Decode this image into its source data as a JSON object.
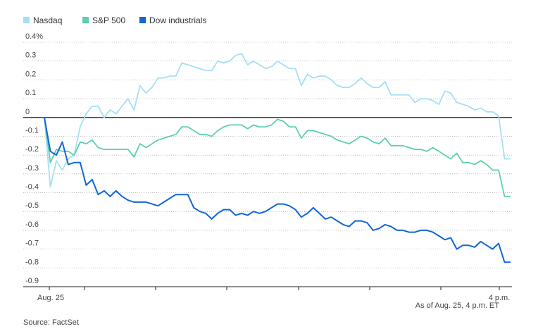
{
  "chart_data": {
    "type": "line",
    "title": "",
    "xlabel": "",
    "ylabel": "",
    "ylim": [
      -0.9,
      0.4
    ],
    "y_tick_values": [
      0.4,
      0.3,
      0.2,
      0.1,
      0,
      -0.1,
      -0.2,
      -0.3,
      -0.4,
      -0.5,
      -0.6,
      -0.7,
      -0.8,
      -0.9
    ],
    "y_tick_labels": [
      "0.4%",
      "0.3",
      "0.2",
      "0.1",
      "0",
      "-0.1",
      "-0.2",
      "-0.3",
      "-0.4",
      "-0.5",
      "-0.6",
      "-0.7",
      "-0.8",
      "-0.9"
    ],
    "x_tick_labels": {
      "start": "Aug. 25",
      "end": "4 p.m."
    },
    "grid": true,
    "legend_position": "top-left",
    "note": "As of Aug. 25, 4 p.m. ET",
    "source": "Source: FactSet",
    "series": [
      {
        "name": "Nasdaq",
        "color": "#a3e0f3",
        "values": [
          0,
          -0.37,
          -0.23,
          -0.28,
          -0.22,
          -0.2,
          -0.05,
          0.02,
          0.06,
          0.06,
          0.0,
          0.04,
          0.02,
          0.06,
          0.1,
          0.04,
          0.17,
          0.13,
          0.16,
          0.21,
          0.21,
          0.22,
          0.22,
          0.29,
          0.28,
          0.27,
          0.26,
          0.25,
          0.25,
          0.3,
          0.29,
          0.3,
          0.33,
          0.34,
          0.28,
          0.3,
          0.28,
          0.26,
          0.27,
          0.3,
          0.28,
          0.26,
          0.26,
          0.17,
          0.23,
          0.21,
          0.22,
          0.22,
          0.2,
          0.17,
          0.16,
          0.16,
          0.18,
          0.21,
          0.18,
          0.16,
          0.16,
          0.19,
          0.12,
          0.12,
          0.12,
          0.12,
          0.08,
          0.1,
          0.1,
          0.09,
          0.07,
          0.14,
          0.13,
          0.08,
          0.07,
          0.06,
          0.04,
          0.05,
          0.03,
          0.03,
          0.01,
          -0.22,
          -0.22
        ]
      },
      {
        "name": "S&P 500",
        "color": "#5ccfb2",
        "values": [
          0,
          -0.24,
          -0.17,
          -0.18,
          -0.18,
          -0.2,
          -0.13,
          -0.14,
          -0.12,
          -0.16,
          -0.17,
          -0.17,
          -0.17,
          -0.17,
          -0.17,
          -0.21,
          -0.14,
          -0.16,
          -0.14,
          -0.12,
          -0.11,
          -0.1,
          -0.09,
          -0.05,
          -0.05,
          -0.07,
          -0.09,
          -0.09,
          -0.1,
          -0.07,
          -0.05,
          -0.04,
          -0.04,
          -0.04,
          -0.06,
          -0.04,
          -0.05,
          -0.05,
          -0.04,
          -0.01,
          -0.02,
          -0.05,
          -0.05,
          -0.11,
          -0.07,
          -0.07,
          -0.08,
          -0.09,
          -0.1,
          -0.12,
          -0.13,
          -0.14,
          -0.12,
          -0.1,
          -0.11,
          -0.13,
          -0.14,
          -0.11,
          -0.15,
          -0.15,
          -0.15,
          -0.16,
          -0.17,
          -0.17,
          -0.18,
          -0.16,
          -0.18,
          -0.2,
          -0.22,
          -0.19,
          -0.24,
          -0.24,
          -0.25,
          -0.23,
          -0.25,
          -0.28,
          -0.28,
          -0.42,
          -0.42
        ]
      },
      {
        "name": "Dow industrials",
        "color": "#1166d5",
        "values": [
          0,
          -0.18,
          -0.2,
          -0.13,
          -0.25,
          -0.24,
          -0.24,
          -0.36,
          -0.33,
          -0.41,
          -0.39,
          -0.42,
          -0.39,
          -0.42,
          -0.44,
          -0.45,
          -0.45,
          -0.45,
          -0.46,
          -0.47,
          -0.45,
          -0.43,
          -0.41,
          -0.41,
          -0.41,
          -0.48,
          -0.5,
          -0.51,
          -0.54,
          -0.51,
          -0.49,
          -0.49,
          -0.52,
          -0.51,
          -0.52,
          -0.5,
          -0.51,
          -0.5,
          -0.48,
          -0.46,
          -0.46,
          -0.47,
          -0.49,
          -0.53,
          -0.51,
          -0.48,
          -0.51,
          -0.54,
          -0.53,
          -0.55,
          -0.57,
          -0.58,
          -0.55,
          -0.55,
          -0.56,
          -0.6,
          -0.59,
          -0.57,
          -0.58,
          -0.6,
          -0.6,
          -0.61,
          -0.61,
          -0.6,
          -0.6,
          -0.61,
          -0.63,
          -0.65,
          -0.64,
          -0.7,
          -0.68,
          -0.68,
          -0.69,
          -0.66,
          -0.68,
          -0.7,
          -0.67,
          -0.77,
          -0.77
        ]
      }
    ]
  }
}
